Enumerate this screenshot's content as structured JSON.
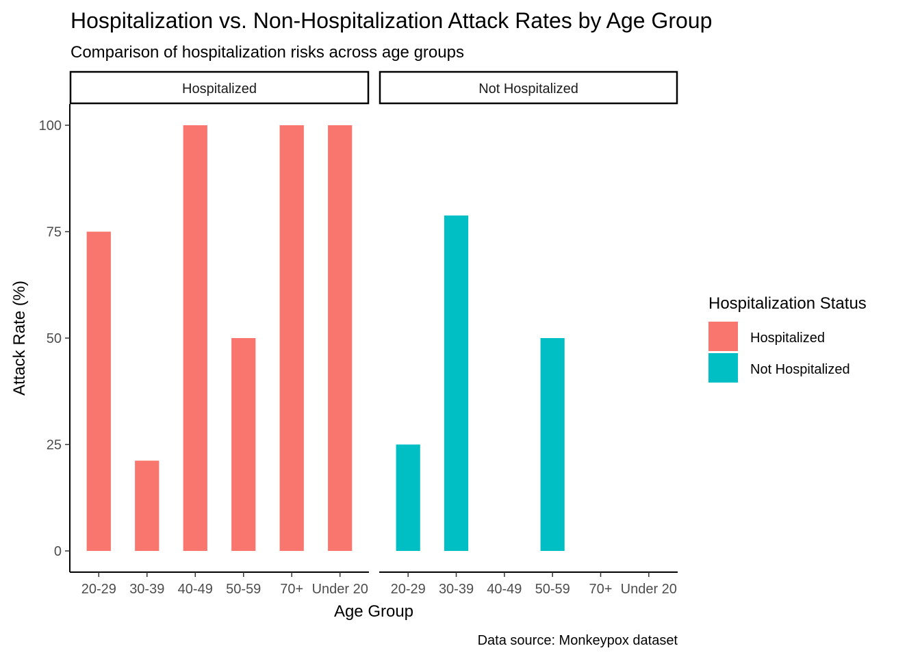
{
  "chart_data": {
    "type": "bar",
    "title": "Hospitalization vs. Non-Hospitalization Attack Rates by Age Group",
    "subtitle": "Comparison of hospitalization risks across age groups",
    "xlabel": "Age Group",
    "ylabel": "Attack Rate (%)",
    "caption": "Data source: Monkeypox dataset",
    "categories": [
      "20-29",
      "30-39",
      "40-49",
      "50-59",
      "70+",
      "Under 20"
    ],
    "ylim": [
      0,
      100
    ],
    "yticks": [
      0,
      25,
      50,
      75,
      100
    ],
    "grid": false,
    "facets": [
      "Hospitalized",
      "Not Hospitalized"
    ],
    "series": [
      {
        "name": "Hospitalized",
        "color": "#F8766D",
        "values": [
          75,
          21.2,
          100,
          50,
          100,
          100
        ]
      },
      {
        "name": "Not Hospitalized",
        "color": "#00BFC4",
        "values": [
          25,
          78.8,
          null,
          50,
          null,
          null
        ]
      }
    ],
    "legend": {
      "title": "Hospitalization Status",
      "position": "right",
      "items": [
        {
          "label": "Hospitalized",
          "color": "#F8766D"
        },
        {
          "label": "Not Hospitalized",
          "color": "#00BFC4"
        }
      ]
    }
  }
}
